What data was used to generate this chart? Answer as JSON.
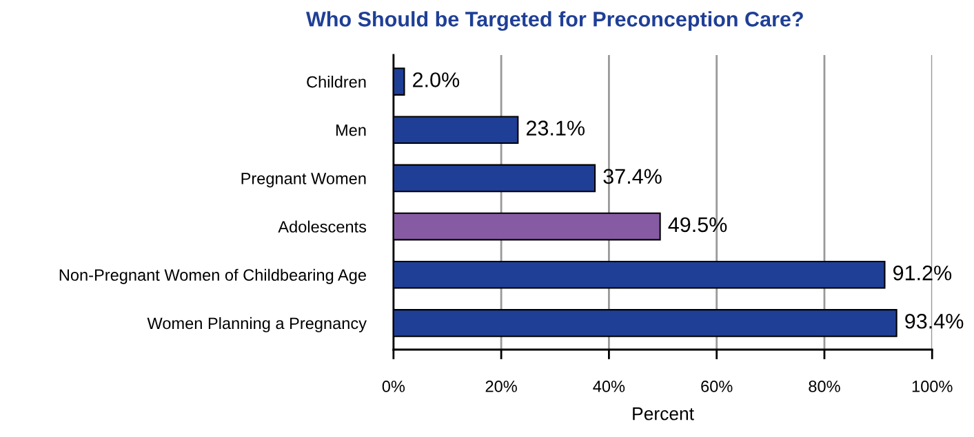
{
  "chart_data": {
    "type": "bar",
    "orientation": "horizontal",
    "title": "Who Should be Targeted for Preconception Care?",
    "xlabel": "Percent",
    "categories": [
      "Children",
      "Men",
      "Pregnant Women",
      "Adolescents",
      "Non-Pregnant Women of Childbearing Age",
      "Women Planning a Pregnancy"
    ],
    "values": [
      2.0,
      23.1,
      37.4,
      49.5,
      91.2,
      93.4
    ],
    "colors": [
      "#1f3f96",
      "#1f3f96",
      "#1f3f96",
      "#865ba4",
      "#1f3f96",
      "#1f3f96"
    ],
    "value_labels": [
      "2.0%",
      "23.1%",
      "37.4%",
      "49.5%",
      "91.2%",
      "93.4%"
    ],
    "xlim": [
      0,
      100
    ],
    "xticks": [
      {
        "value": 0,
        "label": "0%"
      },
      {
        "value": 20,
        "label": "20%"
      },
      {
        "value": 40,
        "label": "40%"
      },
      {
        "value": 60,
        "label": "60%"
      },
      {
        "value": 80,
        "label": "80%"
      },
      {
        "value": 100,
        "label": "100%"
      }
    ],
    "grid": "x"
  }
}
